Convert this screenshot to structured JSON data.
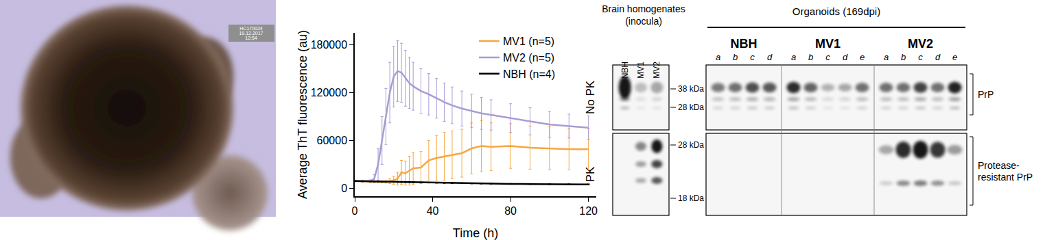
{
  "image": {
    "stamp": [
      "HC170024",
      "19.12.2017",
      "12:54"
    ]
  },
  "chart_data": {
    "type": "line",
    "x_label": "Time (h)",
    "y_label": "Average ThT fluorescence (au)",
    "xlim": [
      0,
      124
    ],
    "ylim": [
      -10000,
      195000
    ],
    "xticks": [
      0,
      40,
      80,
      120
    ],
    "yticks": [
      0,
      60000,
      120000,
      180000
    ],
    "grid": false,
    "legend": "upper right",
    "x": [
      0,
      4,
      8,
      10,
      12,
      14,
      16,
      18,
      20,
      22,
      24,
      26,
      28,
      30,
      34,
      38,
      42,
      46,
      50,
      55,
      60,
      65,
      70,
      80,
      90,
      100,
      110,
      120
    ],
    "series": [
      {
        "name": "MV1 (n=5)",
        "color": "#f5a742",
        "values": [
          9000,
          8500,
          8000,
          8000,
          8000,
          8000,
          8000,
          9000,
          10000,
          12000,
          20000,
          19000,
          22000,
          25000,
          26000,
          35000,
          38000,
          40000,
          42000,
          44000,
          50000,
          53000,
          52000,
          53000,
          51000,
          50000,
          49000,
          49000
        ],
        "errors": [
          1000,
          1000,
          1000,
          1000,
          1000,
          1200,
          1500,
          3000,
          5000,
          8000,
          15000,
          15000,
          18000,
          20000,
          20000,
          25000,
          28000,
          30000,
          30000,
          30000,
          32000,
          32000,
          30000,
          28000,
          27000,
          27000,
          26000,
          26000
        ]
      },
      {
        "name": "MV2 (n=5)",
        "color": "#a99cd3",
        "values": [
          9000,
          9000,
          9000,
          12000,
          30000,
          60000,
          90000,
          120000,
          140000,
          147000,
          145000,
          138000,
          132000,
          128000,
          122000,
          118000,
          113000,
          108000,
          104000,
          100000,
          97000,
          94000,
          92000,
          88000,
          84000,
          80000,
          78000,
          76000
        ],
        "errors": [
          1000,
          1000,
          1500,
          5000,
          20000,
          30000,
          35000,
          38000,
          38000,
          38000,
          37000,
          35000,
          32000,
          30000,
          28000,
          26000,
          25000,
          24000,
          23000,
          22000,
          21000,
          20000,
          19000,
          18000,
          17000,
          16000,
          15000,
          15000
        ]
      },
      {
        "name": "NBH (n=4)",
        "color": "#000000",
        "values": [
          9000,
          8800,
          8600,
          8500,
          8400,
          8300,
          8200,
          8100,
          8000,
          7900,
          7800,
          7700,
          7600,
          7500,
          7300,
          7100,
          6900,
          6700,
          6500,
          6300,
          6100,
          5900,
          5700,
          5500,
          5300,
          5100,
          5000,
          4900
        ],
        "errors": [
          500,
          500,
          500,
          500,
          500,
          500,
          500,
          500,
          500,
          500,
          500,
          500,
          500,
          500,
          500,
          500,
          500,
          500,
          500,
          500,
          500,
          500,
          500,
          500,
          500,
          500,
          500,
          500
        ]
      }
    ]
  },
  "blots": {
    "rows": [
      "No PK",
      "PK"
    ],
    "markers": {
      "No PK": [
        "38 kDa",
        "28 kDa"
      ],
      "PK": [
        "28 kDa",
        "18 kDa"
      ]
    },
    "brackets": {
      "No PK": [
        "PrP"
      ],
      "PK": [
        "Protease-",
        "resistant PrP"
      ]
    },
    "inocula": {
      "title": [
        "Brain homogenates",
        "(inocula)"
      ],
      "lanes": [
        {
          "label": "NBH",
          "nopk": 1.0,
          "pk": 0.0
        },
        {
          "label": "MV1",
          "nopk": 0.25,
          "pk": 0.5
        },
        {
          "label": "MV2",
          "nopk": 0.35,
          "pk": 1.0
        }
      ]
    },
    "organoids": {
      "title": "Organoids (169dpi)",
      "groups": [
        {
          "name": "NBH",
          "lanes": [
            {
              "label": "a",
              "nopk": 0.55,
              "pk": 0.0
            },
            {
              "label": "b",
              "nopk": 0.6,
              "pk": 0.0
            },
            {
              "label": "c",
              "nopk": 0.75,
              "pk": 0.0
            },
            {
              "label": "d",
              "nopk": 0.7,
              "pk": 0.0
            }
          ]
        },
        {
          "name": "MV1",
          "lanes": [
            {
              "label": "a",
              "nopk": 0.9,
              "pk": 0.0
            },
            {
              "label": "b",
              "nopk": 0.65,
              "pk": 0.0
            },
            {
              "label": "c",
              "nopk": 0.3,
              "pk": 0.0
            },
            {
              "label": "d",
              "nopk": 0.35,
              "pk": 0.0
            },
            {
              "label": "e",
              "nopk": 0.6,
              "pk": 0.0
            }
          ]
        },
        {
          "name": "MV2",
          "lanes": [
            {
              "label": "a",
              "nopk": 0.6,
              "pk": 0.35
            },
            {
              "label": "b",
              "nopk": 0.6,
              "pk": 0.9
            },
            {
              "label": "c",
              "nopk": 0.8,
              "pk": 1.0
            },
            {
              "label": "d",
              "nopk": 0.6,
              "pk": 0.85
            },
            {
              "label": "e",
              "nopk": 0.95,
              "pk": 0.4
            }
          ]
        }
      ]
    }
  }
}
